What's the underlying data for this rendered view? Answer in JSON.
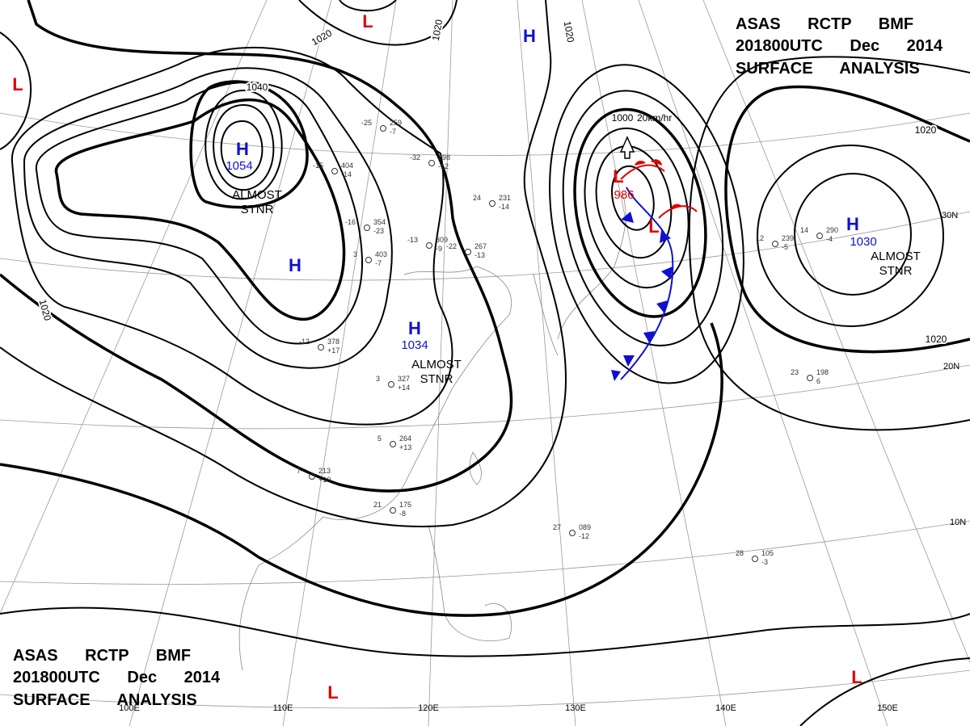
{
  "header": {
    "lines": [
      "ASAS RCTP BMF",
      "201800UTC Dec 2014",
      "SURFACE ANALYSIS"
    ]
  },
  "systems": [
    {
      "letter": "H",
      "pressure": 1054,
      "status": [
        "ALMOST",
        "STNR"
      ]
    },
    {
      "letter": "H"
    },
    {
      "letter": "H",
      "pressure": 1034,
      "status": [
        "ALMOST",
        "STNR"
      ]
    },
    {
      "letter": "H",
      "pressure": 1030,
      "status": [
        "ALMOST",
        "STNR"
      ]
    },
    {
      "letter": "H"
    },
    {
      "letter": "L",
      "pressure": 986
    },
    {
      "letter": "L"
    },
    {
      "letter": "L"
    },
    {
      "letter": "L"
    },
    {
      "letter": "L"
    },
    {
      "letter": "L"
    }
  ],
  "isobar_labels": [
    1020,
    1020,
    1020,
    1020,
    1020,
    1020,
    1040,
    1000
  ],
  "front_speed": "20km/hr",
  "graticule": {
    "latitudes": [
      "30N",
      "20N",
      "10N"
    ],
    "longitudes": [
      "100E",
      "110E",
      "120E",
      "130E",
      "140E",
      "150E"
    ]
  },
  "stations": [
    {
      "temp": "24",
      "pressure": "231",
      "dew": "-14"
    },
    {
      "temp": "-22",
      "pressure": "267",
      "dew": "-13"
    },
    {
      "temp": "-13",
      "pressure": "309",
      "dew": "-9"
    },
    {
      "temp": "-16",
      "pressure": "354",
      "dew": "-23"
    },
    {
      "temp": "3",
      "pressure": "403",
      "dew": "-7"
    },
    {
      "temp": "-12",
      "pressure": "378",
      "dew": "+17"
    },
    {
      "temp": "3",
      "pressure": "327",
      "dew": "+14"
    },
    {
      "temp": "5",
      "pressure": "264",
      "dew": "+13"
    },
    {
      "temp": "7",
      "pressure": "213",
      "dew": "+10"
    },
    {
      "temp": "21",
      "pressure": "175",
      "dew": "-8"
    },
    {
      "temp": "27",
      "pressure": "089",
      "dew": "-12"
    },
    {
      "temp": "28",
      "pressure": "105",
      "dew": "-3"
    },
    {
      "temp": "23",
      "pressure": "198",
      "dew": "6"
    },
    {
      "temp": "12",
      "pressure": "239",
      "dew": "-5"
    },
    {
      "temp": "14",
      "pressure": "290",
      "dew": "-4"
    },
    {
      "temp": "-32",
      "pressure": "298",
      "dew": "-12"
    },
    {
      "temp": "-25",
      "pressure": "259",
      "dew": "-7"
    },
    {
      "temp": "-15",
      "pressure": "404",
      "dew": "-14"
    }
  ]
}
